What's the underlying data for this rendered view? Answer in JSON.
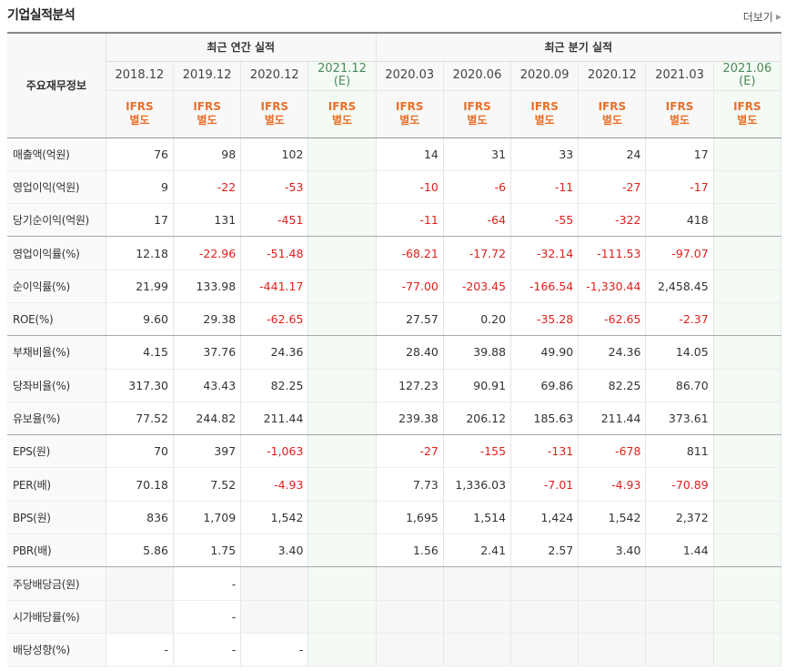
{
  "header": {
    "title": "기업실적분석",
    "more_label": "더보기"
  },
  "table": {
    "corner_label": "주요재무정보",
    "groups": {
      "annual": "최근 연간 실적",
      "quarterly": "최근 분기 실적"
    },
    "dates": [
      {
        "period": "2018.12",
        "est": ""
      },
      {
        "period": "2019.12",
        "est": ""
      },
      {
        "period": "2020.12",
        "est": ""
      },
      {
        "period": "2021.12",
        "est": "(E)"
      },
      {
        "period": "2020.03",
        "est": ""
      },
      {
        "period": "2020.06",
        "est": ""
      },
      {
        "period": "2020.09",
        "est": ""
      },
      {
        "period": "2020.12",
        "est": ""
      },
      {
        "period": "2021.03",
        "est": ""
      },
      {
        "period": "2021.06",
        "est": "(E)"
      }
    ],
    "ifrs": [
      {
        "l1": "IFRS",
        "l2": "별도"
      },
      {
        "l1": "IFRS",
        "l2": "별도"
      },
      {
        "l1": "IFRS",
        "l2": "별도"
      },
      {
        "l1": "IFRS",
        "l2": "별도"
      },
      {
        "l1": "IFRS",
        "l2": "별도"
      },
      {
        "l1": "IFRS",
        "l2": "별도"
      },
      {
        "l1": "IFRS",
        "l2": "별도"
      },
      {
        "l1": "IFRS",
        "l2": "별도"
      },
      {
        "l1": "IFRS",
        "l2": "별도"
      },
      {
        "l1": "IFRS",
        "l2": "별도"
      }
    ],
    "rows": [
      {
        "label": "매출액(억원)",
        "values": [
          "76",
          "98",
          "102",
          "",
          "14",
          "31",
          "33",
          "24",
          "17",
          ""
        ]
      },
      {
        "label": "영업이익(억원)",
        "values": [
          "9",
          "-22",
          "-53",
          "",
          "-10",
          "-6",
          "-11",
          "-27",
          "-17",
          ""
        ]
      },
      {
        "label": "당기순이익(억원)",
        "values": [
          "17",
          "131",
          "-451",
          "",
          "-11",
          "-64",
          "-55",
          "-322",
          "418",
          ""
        ]
      },
      {
        "label": "영업이익률(%)",
        "values": [
          "12.18",
          "-22.96",
          "-51.48",
          "",
          "-68.21",
          "-17.72",
          "-32.14",
          "-111.53",
          "-97.07",
          ""
        ]
      },
      {
        "label": "순이익률(%)",
        "values": [
          "21.99",
          "133.98",
          "-441.17",
          "",
          "-77.00",
          "-203.45",
          "-166.54",
          "-1,330.44",
          "2,458.45",
          ""
        ]
      },
      {
        "label": "ROE(%)",
        "values": [
          "9.60",
          "29.38",
          "-62.65",
          "",
          "27.57",
          "0.20",
          "-35.28",
          "-62.65",
          "-2.37",
          ""
        ]
      },
      {
        "label": "부채비율(%)",
        "values": [
          "4.15",
          "37.76",
          "24.36",
          "",
          "28.40",
          "39.88",
          "49.90",
          "24.36",
          "14.05",
          ""
        ]
      },
      {
        "label": "당좌비율(%)",
        "values": [
          "317.30",
          "43.43",
          "82.25",
          "",
          "127.23",
          "90.91",
          "69.86",
          "82.25",
          "86.70",
          ""
        ]
      },
      {
        "label": "유보율(%)",
        "values": [
          "77.52",
          "244.82",
          "211.44",
          "",
          "239.38",
          "206.12",
          "185.63",
          "211.44",
          "373.61",
          ""
        ]
      },
      {
        "label": "EPS(원)",
        "values": [
          "70",
          "397",
          "-1,063",
          "",
          "-27",
          "-155",
          "-131",
          "-678",
          "811",
          ""
        ]
      },
      {
        "label": "PER(배)",
        "values": [
          "70.18",
          "7.52",
          "-4.93",
          "",
          "7.73",
          "1,336.03",
          "-7.01",
          "-4.93",
          "-70.89",
          ""
        ]
      },
      {
        "label": "BPS(원)",
        "values": [
          "836",
          "1,709",
          "1,542",
          "",
          "1,695",
          "1,514",
          "1,424",
          "1,542",
          "2,372",
          ""
        ]
      },
      {
        "label": "PBR(배)",
        "values": [
          "5.86",
          "1.75",
          "3.40",
          "",
          "1.56",
          "2.41",
          "2.57",
          "3.40",
          "1.44",
          ""
        ]
      },
      {
        "label": "주당배당금(원)",
        "values": [
          "",
          "-",
          "",
          "",
          "",
          "",
          "",
          "",
          "",
          ""
        ]
      },
      {
        "label": "시가배당률(%)",
        "values": [
          "",
          "-",
          "",
          "",
          "",
          "",
          "",
          "",
          "",
          ""
        ]
      },
      {
        "label": "배당성향(%)",
        "values": [
          "-",
          "-",
          "-",
          "",
          "",
          "",
          "",
          "",
          "",
          ""
        ]
      }
    ]
  },
  "colors": {
    "negative": "#e0201c",
    "ifrs": "#e8702a",
    "estimate": "#4a8a5a"
  }
}
